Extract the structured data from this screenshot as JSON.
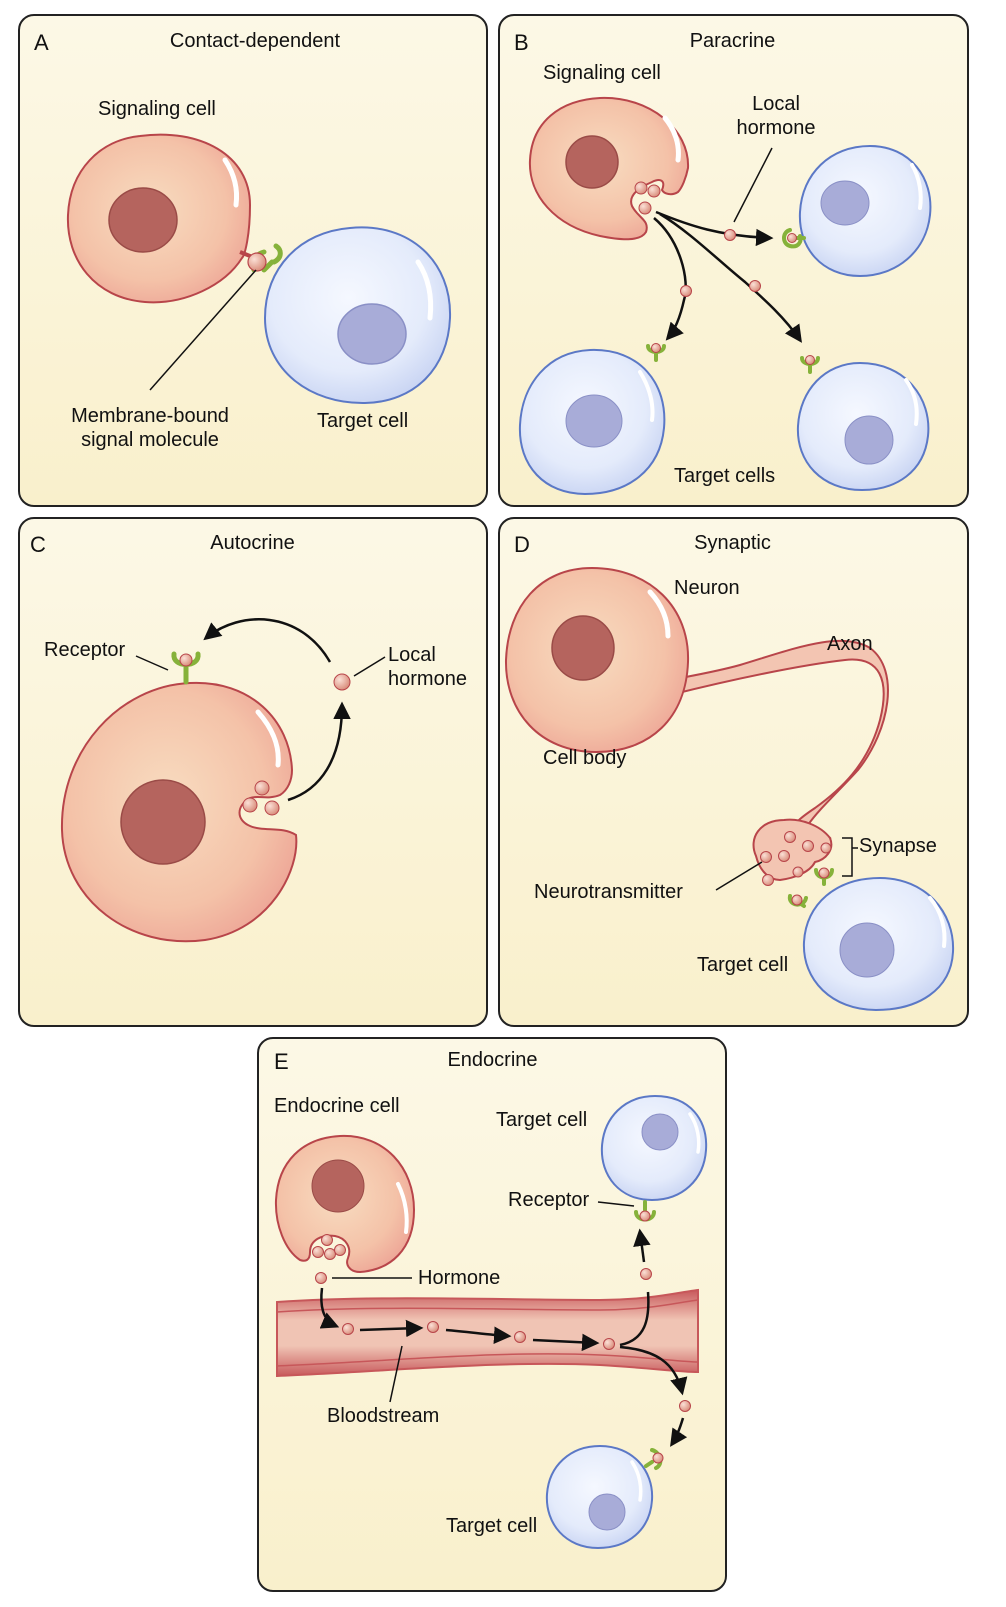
{
  "panels": {
    "a": {
      "letter": "A",
      "title": "Contact-dependent",
      "signaling_cell": "Signaling cell",
      "membrane_bound_1": "Membrane-bound",
      "membrane_bound_2": "signal molecule",
      "target_cell": "Target cell"
    },
    "b": {
      "letter": "B",
      "title": "Paracrine",
      "signaling_cell": "Signaling cell",
      "local_1": "Local",
      "local_2": "hormone",
      "target_cells": "Target cells"
    },
    "c": {
      "letter": "C",
      "title": "Autocrine",
      "receptor": "Receptor",
      "local_1": "Local",
      "local_2": "hormone"
    },
    "d": {
      "letter": "D",
      "title": "Synaptic",
      "neuron": "Neuron",
      "axon": "Axon",
      "cell_body": "Cell body",
      "synapse": "Synapse",
      "neurotransmitter": "Neurotransmitter",
      "target_cell": "Target cell"
    },
    "e": {
      "letter": "E",
      "title": "Endocrine",
      "endocrine_cell": "Endocrine cell",
      "target_cell_top": "Target cell",
      "receptor": "Receptor",
      "hormone": "Hormone",
      "bloodstream": "Bloodstream",
      "target_cell_bottom": "Target cell"
    }
  },
  "colors": {
    "panel_bg": "#fbf4d8",
    "signaling_cell_fill": "#f5c7ab",
    "signaling_cell_stroke": "#b8454a",
    "nucleus_red": "#b5645e",
    "target_cell_fill": "#dde6f8",
    "target_cell_stroke": "#5b78c6",
    "nucleus_blue": "#a8acd8",
    "receptor_green": "#86b23a",
    "molecule": "#e09a8a",
    "blood_vessel": "#c7575a"
  }
}
